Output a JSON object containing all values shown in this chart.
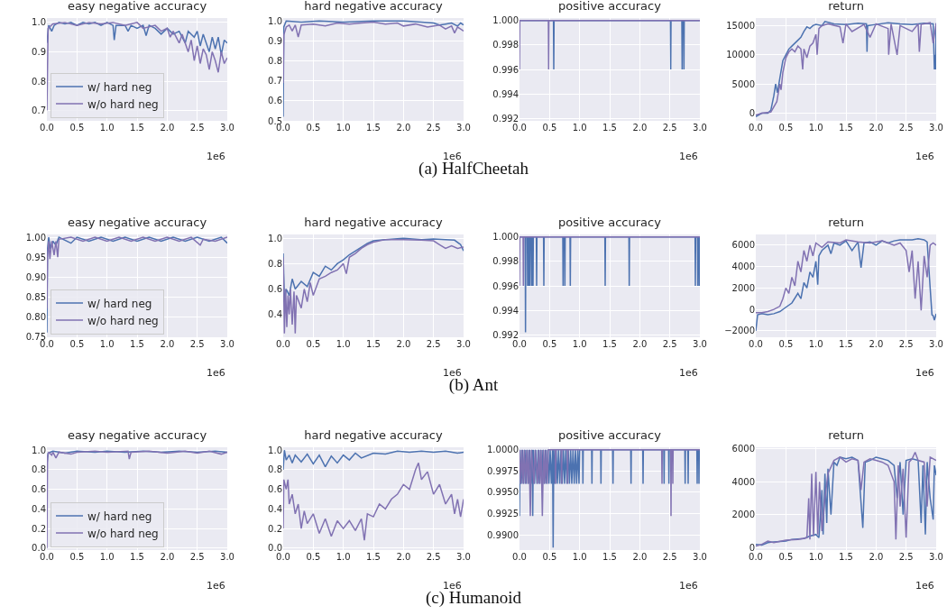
{
  "chart_data": [
    {
      "type": "line",
      "title": "easy negative accuracy",
      "xlim": [
        0,
        3
      ],
      "xticks": [
        {
          "value": 0,
          "label": "0.0"
        },
        0.5,
        {
          "value": 1,
          "label": "1.0"
        },
        1.5,
        {
          "value": 2,
          "label": "2.0"
        },
        2.5,
        {
          "value": 3,
          "label": "3.0"
        }
      ],
      "ylim": [
        0.665,
        1.015
      ],
      "yticks": [
        0.7,
        0.8,
        0.9,
        {
          "value": 1,
          "label": "1.0"
        }
      ],
      "grid": true,
      "legend": "bottom left",
      "annotations": [
        "1e6",
        "(a) HalfCheetah"
      ],
      "series": [
        {
          "name": "w/ hard neg",
          "color": "#4c72b0",
          "x": [
            0,
            0.03,
            0.08,
            0.12,
            0.2,
            0.3,
            0.4,
            0.5,
            0.6,
            0.7,
            0.8,
            0.9,
            1.0,
            1.1,
            1.12,
            1.15,
            1.3,
            1.35,
            1.4,
            1.5,
            1.6,
            1.65,
            1.7,
            1.8,
            1.9,
            2.0,
            2.1,
            2.2,
            2.3,
            2.35,
            2.45,
            2.5,
            2.55,
            2.6,
            2.7,
            2.75,
            2.8,
            2.85,
            2.9,
            2.95,
            3.0
          ],
          "values": [
            0.93,
            0.99,
            0.97,
            0.99,
            1.0,
            0.995,
            1.0,
            0.99,
            1.0,
            0.995,
            1.0,
            0.99,
            1.0,
            0.99,
            0.94,
            0.99,
            0.99,
            0.97,
            0.99,
            0.98,
            0.99,
            0.955,
            0.99,
            0.98,
            0.96,
            0.98,
            0.96,
            0.97,
            0.93,
            0.97,
            0.95,
            0.97,
            0.92,
            0.96,
            0.9,
            0.95,
            0.91,
            0.95,
            0.89,
            0.94,
            0.93
          ]
        },
        {
          "name": "w/o hard neg",
          "color": "#8172b2",
          "x": [
            0,
            0.02,
            0.1,
            0.3,
            0.5,
            0.7,
            0.9,
            1.1,
            1.3,
            1.5,
            1.6,
            1.8,
            1.9,
            2.0,
            2.05,
            2.1,
            2.2,
            2.25,
            2.35,
            2.4,
            2.45,
            2.5,
            2.55,
            2.6,
            2.65,
            2.7,
            2.75,
            2.8,
            2.85,
            2.9,
            2.95,
            3.0
          ],
          "values": [
            0.7,
            0.98,
            0.995,
            1.0,
            0.99,
            1.0,
            0.995,
            1.0,
            0.99,
            1.0,
            0.98,
            0.99,
            0.97,
            0.98,
            0.95,
            0.97,
            0.93,
            0.96,
            0.9,
            0.94,
            0.87,
            0.92,
            0.86,
            0.91,
            0.89,
            0.84,
            0.9,
            0.87,
            0.83,
            0.9,
            0.86,
            0.88
          ]
        }
      ]
    },
    {
      "type": "line",
      "title": "hard negative accuracy",
      "xlim": [
        0,
        3
      ],
      "xticks": [
        {
          "value": 0,
          "label": "0.0"
        },
        0.5,
        {
          "value": 1,
          "label": "1.0"
        },
        1.5,
        {
          "value": 2,
          "label": "2.0"
        },
        2.5,
        {
          "value": 3,
          "label": "3.0"
        }
      ],
      "ylim": [
        0.5,
        1.015
      ],
      "yticks": [
        0.5,
        0.6,
        0.7,
        0.8,
        0.9,
        {
          "value": 1,
          "label": "1.0"
        }
      ],
      "grid": true,
      "annotations": [
        "1e6"
      ],
      "series": [
        {
          "color": "#4c72b0",
          "x": [
            0,
            0.01,
            0.05,
            0.3,
            0.6,
            1.0,
            1.5,
            2.0,
            2.3,
            2.5,
            2.6,
            2.7,
            2.8,
            2.9,
            2.95,
            3.0
          ],
          "values": [
            0.52,
            0.97,
            1.0,
            0.995,
            1.0,
            0.995,
            1.0,
            1.0,
            0.995,
            0.99,
            0.98,
            0.985,
            0.99,
            0.975,
            0.99,
            0.98
          ]
        },
        {
          "color": "#8172b2",
          "x": [
            0,
            0.01,
            0.05,
            0.1,
            0.15,
            0.2,
            0.25,
            0.3,
            0.5,
            0.7,
            0.9,
            1.1,
            1.3,
            1.5,
            1.7,
            1.9,
            2.0,
            2.2,
            2.4,
            2.6,
            2.7,
            2.8,
            2.85,
            2.9,
            3.0
          ],
          "values": [
            0.69,
            0.93,
            0.97,
            0.98,
            0.95,
            0.98,
            0.92,
            0.98,
            0.985,
            0.975,
            0.99,
            0.985,
            0.99,
            0.995,
            0.985,
            0.99,
            0.975,
            0.985,
            0.97,
            0.98,
            0.96,
            0.975,
            0.94,
            0.97,
            0.95
          ]
        }
      ]
    },
    {
      "type": "line",
      "title": "positive accuracy",
      "xlim": [
        0,
        3
      ],
      "xticks": [
        {
          "value": 0,
          "label": "0.0"
        },
        0.5,
        {
          "value": 1,
          "label": "1.0"
        },
        1.5,
        {
          "value": 2,
          "label": "2.0"
        },
        2.5,
        {
          "value": 3,
          "label": "3.0"
        }
      ],
      "ylim": [
        0.9918,
        1.0002
      ],
      "yticks": [
        0.992,
        0.994,
        0.996,
        0.998,
        {
          "value": 1,
          "label": "1.000"
        }
      ],
      "grid": true,
      "annotations": [
        "1e6"
      ],
      "series": [
        {
          "color": "#4c72b0",
          "x": [
            0,
            0.565,
            0.57,
            0.575,
            2.51,
            2.515,
            2.52,
            2.7,
            2.705,
            2.71,
            2.73,
            2.735,
            2.74,
            3.0
          ],
          "values": [
            1,
            1,
            0.996,
            1,
            1,
            0.996,
            1,
            1,
            0.996,
            1,
            1,
            0.996,
            1,
            1
          ]
        },
        {
          "color": "#8172b2",
          "x": [
            0,
            0.005,
            0.48,
            0.485,
            0.49,
            3.0
          ],
          "values": [
            0.996,
            1,
            1,
            0.996,
            1,
            1
          ]
        }
      ]
    },
    {
      "type": "line",
      "title": "return",
      "xlim": [
        0,
        3
      ],
      "xticks": [
        {
          "value": 0,
          "label": "0.0"
        },
        0.5,
        {
          "value": 1,
          "label": "1.0"
        },
        1.5,
        {
          "value": 2,
          "label": "2.0"
        },
        2.5,
        {
          "value": 3,
          "label": "3.0"
        }
      ],
      "ylim": [
        -1300,
        16300
      ],
      "yticks": [
        0,
        5000,
        10000,
        15000
      ],
      "grid": true,
      "annotations": [
        "1e6"
      ],
      "series": [
        {
          "color": "#4c72b0",
          "x": [
            0,
            0.1,
            0.2,
            0.25,
            0.3,
            0.33,
            0.36,
            0.4,
            0.45,
            0.5,
            0.55,
            0.6,
            0.65,
            0.7,
            0.75,
            0.8,
            0.85,
            0.9,
            0.95,
            1.0,
            1.1,
            1.15,
            1.3,
            1.5,
            1.7,
            1.84,
            1.85,
            1.86,
            2.0,
            2.2,
            2.4,
            2.6,
            2.8,
            2.95,
            2.97,
            2.98,
            2.99,
            3.0
          ],
          "values": [
            -600,
            0,
            0,
            500,
            3000,
            5000,
            3500,
            6000,
            9000,
            10000,
            11000,
            11500,
            12000,
            12500,
            13000,
            14000,
            14800,
            14500,
            15000,
            15200,
            15000,
            15700,
            15300,
            15200,
            15400,
            15300,
            10500,
            15000,
            15200,
            15500,
            15300,
            15200,
            15400,
            15300,
            7500,
            10000,
            7500,
            15400
          ]
        },
        {
          "color": "#8172b2",
          "x": [
            0,
            0.1,
            0.25,
            0.35,
            0.4,
            0.42,
            0.45,
            0.5,
            0.55,
            0.6,
            0.65,
            0.7,
            0.75,
            0.78,
            0.8,
            0.85,
            0.9,
            0.95,
            1.0,
            1.02,
            1.05,
            1.1,
            1.2,
            1.4,
            1.45,
            1.5,
            1.6,
            1.8,
            1.9,
            2.0,
            2.2,
            2.21,
            2.25,
            2.35,
            2.4,
            2.6,
            2.7,
            2.72,
            2.75,
            2.9,
            2.95,
            3.0
          ],
          "values": [
            -300,
            0,
            200,
            2000,
            5000,
            4000,
            7000,
            9500,
            10500,
            11000,
            10500,
            11500,
            11000,
            7500,
            11000,
            9500,
            11500,
            12000,
            13500,
            10000,
            14500,
            15000,
            15300,
            14800,
            12000,
            15300,
            14000,
            15200,
            13000,
            15300,
            14500,
            10000,
            15300,
            10000,
            15000,
            14000,
            15300,
            10500,
            15200,
            15500,
            12000,
            15400
          ]
        }
      ]
    },
    {
      "type": "line",
      "title": "easy negative accuracy",
      "xlim": [
        0,
        3
      ],
      "xticks": [
        {
          "value": 0,
          "label": "0.0"
        },
        0.5,
        {
          "value": 1,
          "label": "1.0"
        },
        1.5,
        {
          "value": 2,
          "label": "2.0"
        },
        2.5,
        {
          "value": 3,
          "label": "3.0"
        }
      ],
      "ylim": [
        0.748,
        1.007
      ],
      "yticks": [
        0.75,
        {
          "value": 0.8,
          "label": "0.80"
        },
        0.85,
        {
          "value": 0.9,
          "label": "0.90"
        },
        0.95,
        {
          "value": 1,
          "label": "1.00"
        }
      ],
      "grid": true,
      "legend": "bottom left",
      "annotations": [
        "1e6",
        "(b) Ant"
      ],
      "series": [
        {
          "name": "w/ hard neg",
          "color": "#4c72b0",
          "x": [
            0,
            0.01,
            0.03,
            0.06,
            0.1,
            0.15,
            0.2,
            0.4,
            0.5,
            0.7,
            0.9,
            1.1,
            1.3,
            1.5,
            1.7,
            1.9,
            2.1,
            2.3,
            2.5,
            2.7,
            2.9,
            3.0
          ],
          "values": [
            0.76,
            0.97,
            1.0,
            0.97,
            0.99,
            0.98,
            1.0,
            0.985,
            1.0,
            0.99,
            1.0,
            0.99,
            1.0,
            0.99,
            1.0,
            0.99,
            1.0,
            0.99,
            1.0,
            0.99,
            1.0,
            0.985
          ]
        },
        {
          "name": "w/o hard neg",
          "color": "#8172b2",
          "x": [
            0,
            0.01,
            0.03,
            0.05,
            0.08,
            0.12,
            0.15,
            0.18,
            0.2,
            0.4,
            0.6,
            0.8,
            1.0,
            1.2,
            1.4,
            1.6,
            1.8,
            2.0,
            2.2,
            2.4,
            2.55,
            2.6,
            2.8,
            3.0
          ],
          "values": [
            0.82,
            0.95,
            0.99,
            0.945,
            0.99,
            0.955,
            0.99,
            0.95,
            0.995,
            1.0,
            0.99,
            1.0,
            0.99,
            1.0,
            0.99,
            1.0,
            0.99,
            1.0,
            0.99,
            1.0,
            0.98,
            0.995,
            0.99,
            1.0
          ]
        }
      ]
    },
    {
      "type": "line",
      "title": "hard negative accuracy",
      "xlim": [
        0,
        3
      ],
      "xticks": [
        {
          "value": 0,
          "label": "0.0"
        },
        0.5,
        {
          "value": 1,
          "label": "1.0"
        },
        1.5,
        {
          "value": 2,
          "label": "2.0"
        },
        2.5,
        {
          "value": 3,
          "label": "3.0"
        }
      ],
      "ylim": [
        0.22,
        1.03
      ],
      "yticks": [
        0.4,
        0.6,
        0.8,
        {
          "value": 1,
          "label": "1.0"
        }
      ],
      "grid": true,
      "annotations": [
        "1e6"
      ],
      "series": [
        {
          "color": "#4c72b0",
          "x": [
            0,
            0.02,
            0.05,
            0.1,
            0.15,
            0.2,
            0.3,
            0.4,
            0.5,
            0.6,
            0.7,
            0.8,
            0.9,
            1.0,
            1.1,
            1.2,
            1.3,
            1.4,
            1.5,
            1.7,
            2.0,
            2.3,
            2.5,
            2.7,
            2.85,
            2.95,
            3.0
          ],
          "values": [
            0.88,
            0.5,
            0.6,
            0.55,
            0.68,
            0.6,
            0.66,
            0.62,
            0.73,
            0.7,
            0.78,
            0.75,
            0.8,
            0.83,
            0.87,
            0.9,
            0.93,
            0.96,
            0.98,
            0.99,
            1.0,
            0.99,
            0.995,
            0.99,
            0.985,
            0.95,
            0.9
          ]
        },
        {
          "color": "#8172b2",
          "x": [
            0,
            0.02,
            0.04,
            0.06,
            0.08,
            0.1,
            0.12,
            0.15,
            0.18,
            0.2,
            0.22,
            0.3,
            0.35,
            0.4,
            0.45,
            0.5,
            0.6,
            0.7,
            0.8,
            0.9,
            1.0,
            1.05,
            1.1,
            1.2,
            1.3,
            1.4,
            1.5,
            1.7,
            2.0,
            2.3,
            2.5,
            2.6,
            2.7,
            2.8,
            2.9,
            3.0
          ],
          "values": [
            0.85,
            0.25,
            0.6,
            0.3,
            0.55,
            0.4,
            0.6,
            0.32,
            0.58,
            0.25,
            0.55,
            0.45,
            0.6,
            0.5,
            0.65,
            0.55,
            0.68,
            0.7,
            0.73,
            0.75,
            0.8,
            0.72,
            0.85,
            0.88,
            0.92,
            0.95,
            0.97,
            0.99,
            0.99,
            0.985,
            0.98,
            0.95,
            0.92,
            0.94,
            0.92,
            0.93
          ]
        }
      ]
    },
    {
      "type": "line",
      "title": "positive accuracy",
      "xlim": [
        0,
        3
      ],
      "xticks": [
        {
          "value": 0,
          "label": "0.0"
        },
        0.5,
        {
          "value": 1,
          "label": "1.0"
        },
        1.5,
        {
          "value": 2,
          "label": "2.0"
        },
        2.5,
        {
          "value": 3,
          "label": "3.0"
        }
      ],
      "ylim": [
        0.9918,
        1.0002
      ],
      "yticks": [
        0.992,
        0.994,
        0.996,
        0.998,
        {
          "value": 1,
          "label": "1.000"
        }
      ],
      "grid": true,
      "annotations": [
        "1e6"
      ],
      "series": [
        {
          "color": "#4c72b0",
          "x": [
            0,
            0.095,
            0.1,
            0.105,
            0.13,
            0.135,
            0.14,
            0.15,
            0.155,
            0.16,
            0.17,
            0.175,
            0.18,
            0.2,
            0.205,
            0.21,
            0.22,
            0.225,
            0.23,
            0.28,
            0.285,
            0.29,
            0.4,
            0.405,
            0.41,
            0.72,
            0.725,
            0.73,
            0.75,
            0.755,
            0.76,
            0.84,
            0.845,
            0.85,
            1.42,
            1.425,
            1.43,
            1.82,
            1.825,
            1.83,
            2.92,
            2.925,
            2.93,
            2.96,
            2.965,
            2.97,
            2.985,
            2.99,
            3.0
          ],
          "values": [
            1,
            1,
            0.9922,
            1,
            1,
            0.996,
            1,
            1,
            0.996,
            1,
            1,
            0.996,
            1,
            1,
            0.996,
            1,
            1,
            0.996,
            1,
            1,
            0.996,
            1,
            1,
            0.996,
            1,
            1,
            0.996,
            1,
            1,
            0.996,
            1,
            1,
            0.996,
            1,
            1,
            0.996,
            1,
            1,
            0.996,
            1,
            1,
            0.996,
            1,
            1,
            0.996,
            1,
            1,
            0.996,
            1
          ]
        },
        {
          "color": "#8172b2",
          "x": [
            0,
            0.005,
            0.06,
            0.065,
            0.07,
            3.0
          ],
          "values": [
            0.996,
            1,
            1,
            0.996,
            1,
            1
          ]
        }
      ]
    },
    {
      "type": "line",
      "title": "return",
      "xlim": [
        0,
        3
      ],
      "xticks": [
        {
          "value": 0,
          "label": "0.0"
        },
        0.5,
        {
          "value": 1,
          "label": "1.0"
        },
        1.5,
        {
          "value": 2,
          "label": "2.0"
        },
        2.5,
        {
          "value": 3,
          "label": "3.0"
        }
      ],
      "ylim": [
        -2600,
        7000
      ],
      "yticks": [
        {
          "value": -2000,
          "label": "−2000"
        },
        0,
        2000,
        4000,
        6000
      ],
      "grid": true,
      "annotations": [
        "1e6"
      ],
      "series": [
        {
          "color": "#4c72b0",
          "x": [
            0,
            0.03,
            0.1,
            0.2,
            0.3,
            0.4,
            0.5,
            0.6,
            0.7,
            0.75,
            0.8,
            0.85,
            0.9,
            0.95,
            1.0,
            1.03,
            1.05,
            1.1,
            1.2,
            1.25,
            1.3,
            1.4,
            1.5,
            1.6,
            1.7,
            1.75,
            1.8,
            1.9,
            2.0,
            2.1,
            2.2,
            2.3,
            2.4,
            2.6,
            2.7,
            2.8,
            2.85,
            2.9,
            2.93,
            2.95,
            2.97,
            3.0
          ],
          "values": [
            -2000,
            -500,
            -400,
            -500,
            -400,
            -200,
            200,
            600,
            1500,
            1000,
            2500,
            2000,
            3500,
            3000,
            4500,
            2300,
            5000,
            5500,
            6000,
            5200,
            6200,
            6000,
            6400,
            5500,
            6300,
            3900,
            6200,
            6300,
            6000,
            6400,
            6200,
            6400,
            6500,
            6500,
            6600,
            6500,
            6300,
            2000,
            -500,
            -600,
            -1000,
            -400
          ]
        },
        {
          "color": "#8172b2",
          "x": [
            0,
            0.1,
            0.2,
            0.3,
            0.4,
            0.45,
            0.5,
            0.55,
            0.6,
            0.65,
            0.7,
            0.75,
            0.8,
            0.85,
            0.9,
            0.95,
            1.0,
            1.1,
            1.2,
            1.4,
            1.5,
            1.7,
            1.9,
            2.1,
            2.3,
            2.4,
            2.5,
            2.55,
            2.6,
            2.65,
            2.7,
            2.75,
            2.8,
            2.85,
            2.9,
            2.95,
            3.0
          ],
          "values": [
            -300,
            -300,
            -200,
            0,
            300,
            1000,
            2000,
            1500,
            3000,
            2200,
            4500,
            3500,
            5500,
            4500,
            6000,
            5000,
            6200,
            5800,
            6300,
            6200,
            6500,
            6300,
            6200,
            6400,
            6000,
            6200,
            5500,
            3500,
            5500,
            1000,
            4500,
            -100,
            5000,
            3000,
            6000,
            6200,
            6000
          ]
        }
      ]
    },
    {
      "type": "line",
      "title": "easy negative accuracy",
      "xlim": [
        0,
        3
      ],
      "xticks": [
        {
          "value": 0,
          "label": "0.0"
        },
        0.5,
        {
          "value": 1,
          "label": "1.0"
        },
        1.5,
        {
          "value": 2,
          "label": "2.0"
        },
        2.5,
        {
          "value": 3,
          "label": "3.0"
        }
      ],
      "ylim": [
        -0.02,
        1.03
      ],
      "yticks": [
        {
          "value": 0,
          "label": "0.0"
        },
        0.2,
        0.4,
        0.6,
        0.8,
        {
          "value": 1,
          "label": "1.0"
        }
      ],
      "grid": true,
      "legend": "bottom left",
      "annotations": [
        "1e6",
        "(c) Humanoid"
      ],
      "series": [
        {
          "name": "w/ hard neg",
          "color": "#4c72b0",
          "x": [
            0,
            0.02,
            0.1,
            0.3,
            0.5,
            0.8,
            1.0,
            1.3,
            1.6,
            1.9,
            2.2,
            2.5,
            2.8,
            3.0
          ],
          "values": [
            0.85,
            0.97,
            0.99,
            0.97,
            0.99,
            0.98,
            0.99,
            0.98,
            0.99,
            0.98,
            0.99,
            0.98,
            0.99,
            0.98
          ]
        },
        {
          "name": "w/o hard neg",
          "color": "#8172b2",
          "x": [
            0,
            0.01,
            0.03,
            0.08,
            0.1,
            0.15,
            0.2,
            0.4,
            0.5,
            0.8,
            1.0,
            1.35,
            1.37,
            1.4,
            1.7,
            2.0,
            2.3,
            2.5,
            2.7,
            2.9,
            3.0
          ],
          "values": [
            0,
            0.93,
            0.98,
            0.95,
            0.98,
            0.92,
            0.98,
            0.96,
            0.98,
            0.99,
            0.98,
            0.99,
            0.91,
            0.98,
            0.99,
            0.97,
            0.99,
            0.97,
            0.99,
            0.96,
            0.98
          ]
        }
      ]
    },
    {
      "type": "line",
      "title": "hard negative accuracy",
      "xlim": [
        0,
        3
      ],
      "xticks": [
        {
          "value": 0,
          "label": "0.0"
        },
        0.5,
        {
          "value": 1,
          "label": "1.0"
        },
        1.5,
        {
          "value": 2,
          "label": "2.0"
        },
        2.5,
        {
          "value": 3,
          "label": "3.0"
        }
      ],
      "ylim": [
        -0.02,
        1.03
      ],
      "yticks": [
        {
          "value": 0,
          "label": "0.0"
        },
        0.2,
        0.4,
        0.6,
        0.8,
        {
          "value": 1,
          "label": "1.0"
        }
      ],
      "grid": true,
      "annotations": [
        "1e6"
      ],
      "series": [
        {
          "color": "#4c72b0",
          "x": [
            0,
            0.02,
            0.05,
            0.1,
            0.15,
            0.2,
            0.3,
            0.4,
            0.5,
            0.6,
            0.7,
            0.8,
            0.9,
            1.0,
            1.1,
            1.2,
            1.3,
            1.5,
            1.7,
            1.9,
            2.1,
            2.3,
            2.5,
            2.7,
            2.9,
            3.0
          ],
          "values": [
            0.8,
            1.0,
            0.9,
            0.95,
            0.87,
            0.95,
            0.88,
            0.96,
            0.86,
            0.95,
            0.83,
            0.94,
            0.87,
            0.95,
            0.9,
            0.97,
            0.92,
            0.97,
            0.96,
            0.99,
            0.98,
            0.99,
            0.98,
            0.99,
            0.97,
            0.98
          ]
        },
        {
          "color": "#8172b2",
          "x": [
            0,
            0.01,
            0.05,
            0.08,
            0.1,
            0.15,
            0.2,
            0.25,
            0.3,
            0.35,
            0.4,
            0.5,
            0.6,
            0.7,
            0.8,
            0.9,
            1.0,
            1.1,
            1.2,
            1.3,
            1.35,
            1.4,
            1.5,
            1.6,
            1.7,
            1.8,
            1.9,
            2.0,
            2.1,
            2.2,
            2.25,
            2.3,
            2.4,
            2.5,
            2.6,
            2.7,
            2.8,
            2.85,
            2.9,
            2.95,
            3.0
          ],
          "values": [
            0.2,
            0.7,
            0.6,
            0.7,
            0.45,
            0.55,
            0.35,
            0.45,
            0.2,
            0.38,
            0.25,
            0.35,
            0.15,
            0.3,
            0.12,
            0.28,
            0.2,
            0.28,
            0.18,
            0.3,
            0.08,
            0.35,
            0.32,
            0.45,
            0.4,
            0.5,
            0.55,
            0.65,
            0.6,
            0.8,
            0.87,
            0.7,
            0.78,
            0.55,
            0.65,
            0.45,
            0.55,
            0.35,
            0.5,
            0.32,
            0.5
          ]
        }
      ]
    },
    {
      "type": "line",
      "title": "positive accuracy",
      "xlim": [
        0,
        3
      ],
      "xticks": [
        {
          "value": 0,
          "label": "0.0"
        },
        0.5,
        {
          "value": 1,
          "label": "1.0"
        },
        1.5,
        {
          "value": 2,
          "label": "2.0"
        },
        2.5,
        {
          "value": 3,
          "label": "3.0"
        }
      ],
      "ylim": [
        0.9882,
        1.0003
      ],
      "yticks": [
        {
          "value": 0.99,
          "label": "0.9900"
        },
        0.9925,
        {
          "value": 0.995,
          "label": "0.9950"
        },
        0.9975,
        {
          "value": 1,
          "label": "1.0000"
        }
      ],
      "grid": true,
      "annotations": [
        "1e6"
      ],
      "series": [
        {
          "color": "#4c72b0",
          "x": [
            0,
            0.01,
            0.03,
            0.05,
            0.07,
            0.09,
            0.11,
            0.13,
            0.15,
            0.17,
            0.19,
            0.21,
            0.22,
            0.23,
            0.25,
            0.27,
            0.29,
            0.31,
            0.33,
            0.35,
            0.37,
            0.39,
            0.41,
            0.43,
            0.45,
            0.47,
            0.49,
            0.51,
            0.53,
            0.55,
            0.56,
            0.57,
            0.59,
            0.61,
            0.63,
            0.65,
            0.67,
            0.69,
            0.71,
            0.73,
            0.75,
            0.77,
            0.79,
            0.81,
            0.83,
            0.85,
            0.87,
            0.89,
            0.91,
            0.93,
            0.95,
            0.97,
            0.99,
            1.0,
            1.05,
            1.055,
            1.06,
            1.2,
            1.205,
            1.21,
            1.35,
            1.355,
            1.36,
            1.55,
            1.555,
            1.56,
            1.85,
            1.855,
            1.86,
            2.05,
            2.055,
            2.06,
            2.4,
            2.405,
            2.41,
            2.48,
            2.485,
            2.49,
            2.75,
            2.755,
            2.76,
            2.8,
            2.805,
            2.81,
            2.95,
            2.955,
            2.96,
            2.98,
            2.985,
            2.99,
            3.0
          ],
          "values": [
            0.9922,
            1,
            0.996,
            1,
            0.996,
            1,
            0.996,
            1,
            0.996,
            1,
            0.996,
            1,
            0.9922,
            1,
            0.996,
            1,
            0.996,
            1,
            0.996,
            1,
            0.996,
            1,
            0.996,
            1,
            0.996,
            1,
            0.996,
            1,
            0.996,
            1,
            0.9885,
            1,
            0.996,
            1,
            0.996,
            1,
            0.996,
            1,
            0.996,
            1,
            0.996,
            1,
            0.996,
            1,
            0.996,
            1,
            0.996,
            1,
            0.996,
            1,
            0.996,
            1,
            0.996,
            1,
            1,
            0.996,
            1,
            1,
            0.996,
            1,
            1,
            0.996,
            1,
            1,
            0.996,
            1,
            1,
            0.996,
            1,
            1,
            0.996,
            1,
            1,
            0.996,
            1,
            1,
            0.996,
            1,
            1,
            0.996,
            1,
            1,
            0.996,
            1,
            1,
            0.996,
            1,
            1,
            0.996,
            1,
            1
          ]
        },
        {
          "color": "#8172b2",
          "x": [
            0,
            0.02,
            0.04,
            0.06,
            0.08,
            0.1,
            0.12,
            0.14,
            0.16,
            0.18,
            0.2,
            0.24,
            0.26,
            0.3,
            0.32,
            0.34,
            0.36,
            0.38,
            0.4,
            0.42,
            0.44,
            0.46,
            0.48,
            0.595,
            0.6,
            0.605,
            0.695,
            0.7,
            0.705,
            0.795,
            0.8,
            0.805,
            2.365,
            2.37,
            2.375,
            2.515,
            2.52,
            2.525,
            2.545,
            2.55,
            2.555,
            3.0
          ],
          "values": [
            1,
            0.996,
            1,
            0.996,
            1,
            0.996,
            1,
            0.996,
            1,
            0.9922,
            1,
            0.996,
            1,
            0.996,
            1,
            0.996,
            1,
            0.9922,
            1,
            0.996,
            1,
            0.996,
            1,
            1,
            0.996,
            1,
            1,
            0.996,
            1,
            1,
            0.996,
            1,
            1,
            0.996,
            1,
            1,
            0.9922,
            1,
            1,
            0.996,
            1,
            1
          ]
        }
      ]
    },
    {
      "type": "line",
      "title": "return",
      "xlim": [
        0,
        3
      ],
      "xticks": [
        {
          "value": 0,
          "label": "0.0"
        },
        0.5,
        {
          "value": 1,
          "label": "1.0"
        },
        1.5,
        {
          "value": 2,
          "label": "2.0"
        },
        2.5,
        {
          "value": 3,
          "label": "3.0"
        }
      ],
      "ylim": [
        -150,
        6100
      ],
      "yticks": [
        0,
        2000,
        4000,
        6000
      ],
      "grid": true,
      "annotations": [
        "1e6"
      ],
      "series": [
        {
          "color": "#4c72b0",
          "x": [
            0,
            0.1,
            0.2,
            0.3,
            0.5,
            0.6,
            0.8,
            0.9,
            1.0,
            1.05,
            1.1,
            1.12,
            1.15,
            1.18,
            1.2,
            1.25,
            1.3,
            1.35,
            1.4,
            1.5,
            1.6,
            1.7,
            1.78,
            1.82,
            1.9,
            2.0,
            2.1,
            2.2,
            2.3,
            2.35,
            2.4,
            2.45,
            2.5,
            2.6,
            2.7,
            2.75,
            2.78,
            2.82,
            2.85,
            2.9,
            2.95,
            2.97,
            3.0
          ],
          "values": [
            200,
            150,
            300,
            350,
            400,
            500,
            550,
            700,
            800,
            600,
            3500,
            800,
            4500,
            1500,
            4800,
            2000,
            5200,
            5000,
            5500,
            5400,
            5500,
            5300,
            1200,
            5200,
            5300,
            5500,
            5400,
            5300,
            5000,
            3000,
            5200,
            2000,
            5300,
            5400,
            5300,
            1500,
            5000,
            800,
            5200,
            3000,
            1700,
            5000,
            4400
          ]
        },
        {
          "color": "#8172b2",
          "x": [
            0,
            0.1,
            0.2,
            0.3,
            0.5,
            0.7,
            0.85,
            0.88,
            0.9,
            0.93,
            0.96,
            1.0,
            1.03,
            1.06,
            1.1,
            1.15,
            1.2,
            1.3,
            1.4,
            1.5,
            1.6,
            1.7,
            1.75,
            1.8,
            1.9,
            2.0,
            2.1,
            2.2,
            2.3,
            2.33,
            2.37,
            2.4,
            2.45,
            2.5,
            2.55,
            2.6,
            2.65,
            2.7,
            2.8,
            2.85,
            2.9,
            3.0
          ],
          "values": [
            100,
            200,
            400,
            300,
            450,
            500,
            600,
            3000,
            500,
            4500,
            700,
            4600,
            800,
            4000,
            1000,
            3000,
            4500,
            5300,
            5500,
            5200,
            5400,
            5300,
            3500,
            5200,
            5400,
            5300,
            5200,
            5000,
            4000,
            500,
            5000,
            2500,
            4800,
            600,
            5200,
            5400,
            5800,
            5300,
            5200,
            2500,
            5500,
            5300
          ]
        }
      ]
    }
  ]
}
